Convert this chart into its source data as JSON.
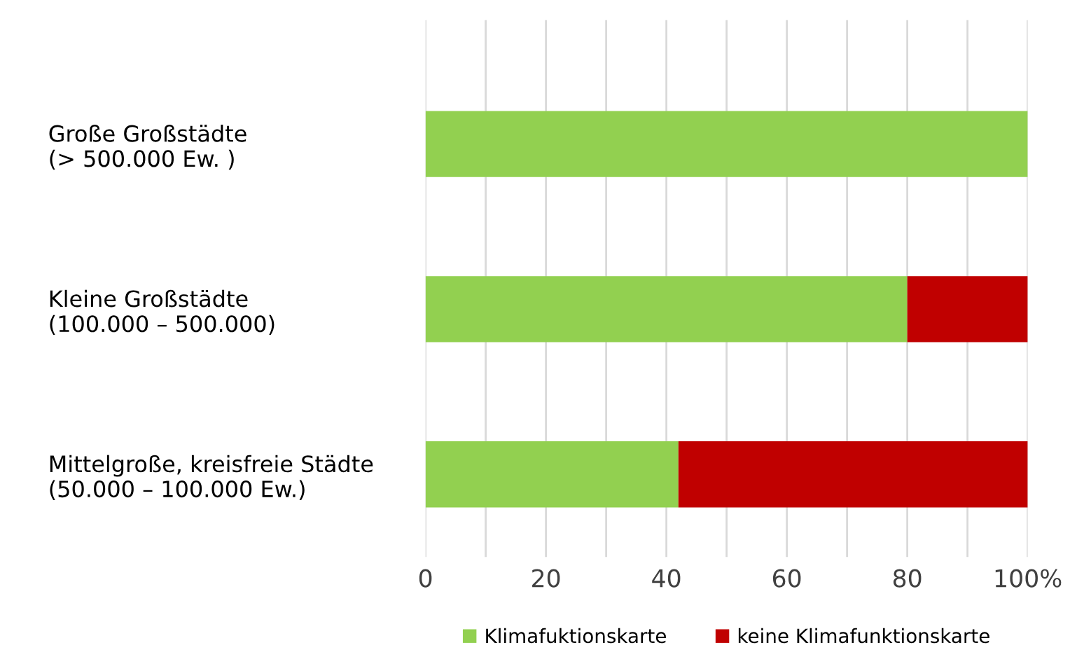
{
  "chart_data": {
    "type": "bar",
    "orientation": "horizontal",
    "stacked": true,
    "categories": [
      "Große Großstädte\n(> 500.000 Ew. )",
      "Kleine Großstädte\n(100.000 – 500.000)",
      "Mittelgroße, kreisfreie Städte\n(50.000 – 100.000 Ew.)"
    ],
    "series": [
      {
        "name": "Klimafuktionskarte",
        "color": "#92d050",
        "values": [
          100,
          80,
          42
        ]
      },
      {
        "name": "keine Klimafunktionskarte",
        "color": "#c00000",
        "values": [
          0,
          20,
          58
        ]
      }
    ],
    "xlim": [
      0,
      100
    ],
    "xticks": [
      0,
      {
        "value": 10,
        "label": null
      },
      20,
      {
        "value": 30,
        "label": null
      },
      40,
      {
        "value": 50,
        "label": null
      },
      60,
      {
        "value": 70,
        "label": null
      },
      80,
      {
        "value": 90,
        "label": null
      },
      {
        "value": 100,
        "label": "100%"
      }
    ],
    "grid": "x",
    "legend": "bottom"
  }
}
